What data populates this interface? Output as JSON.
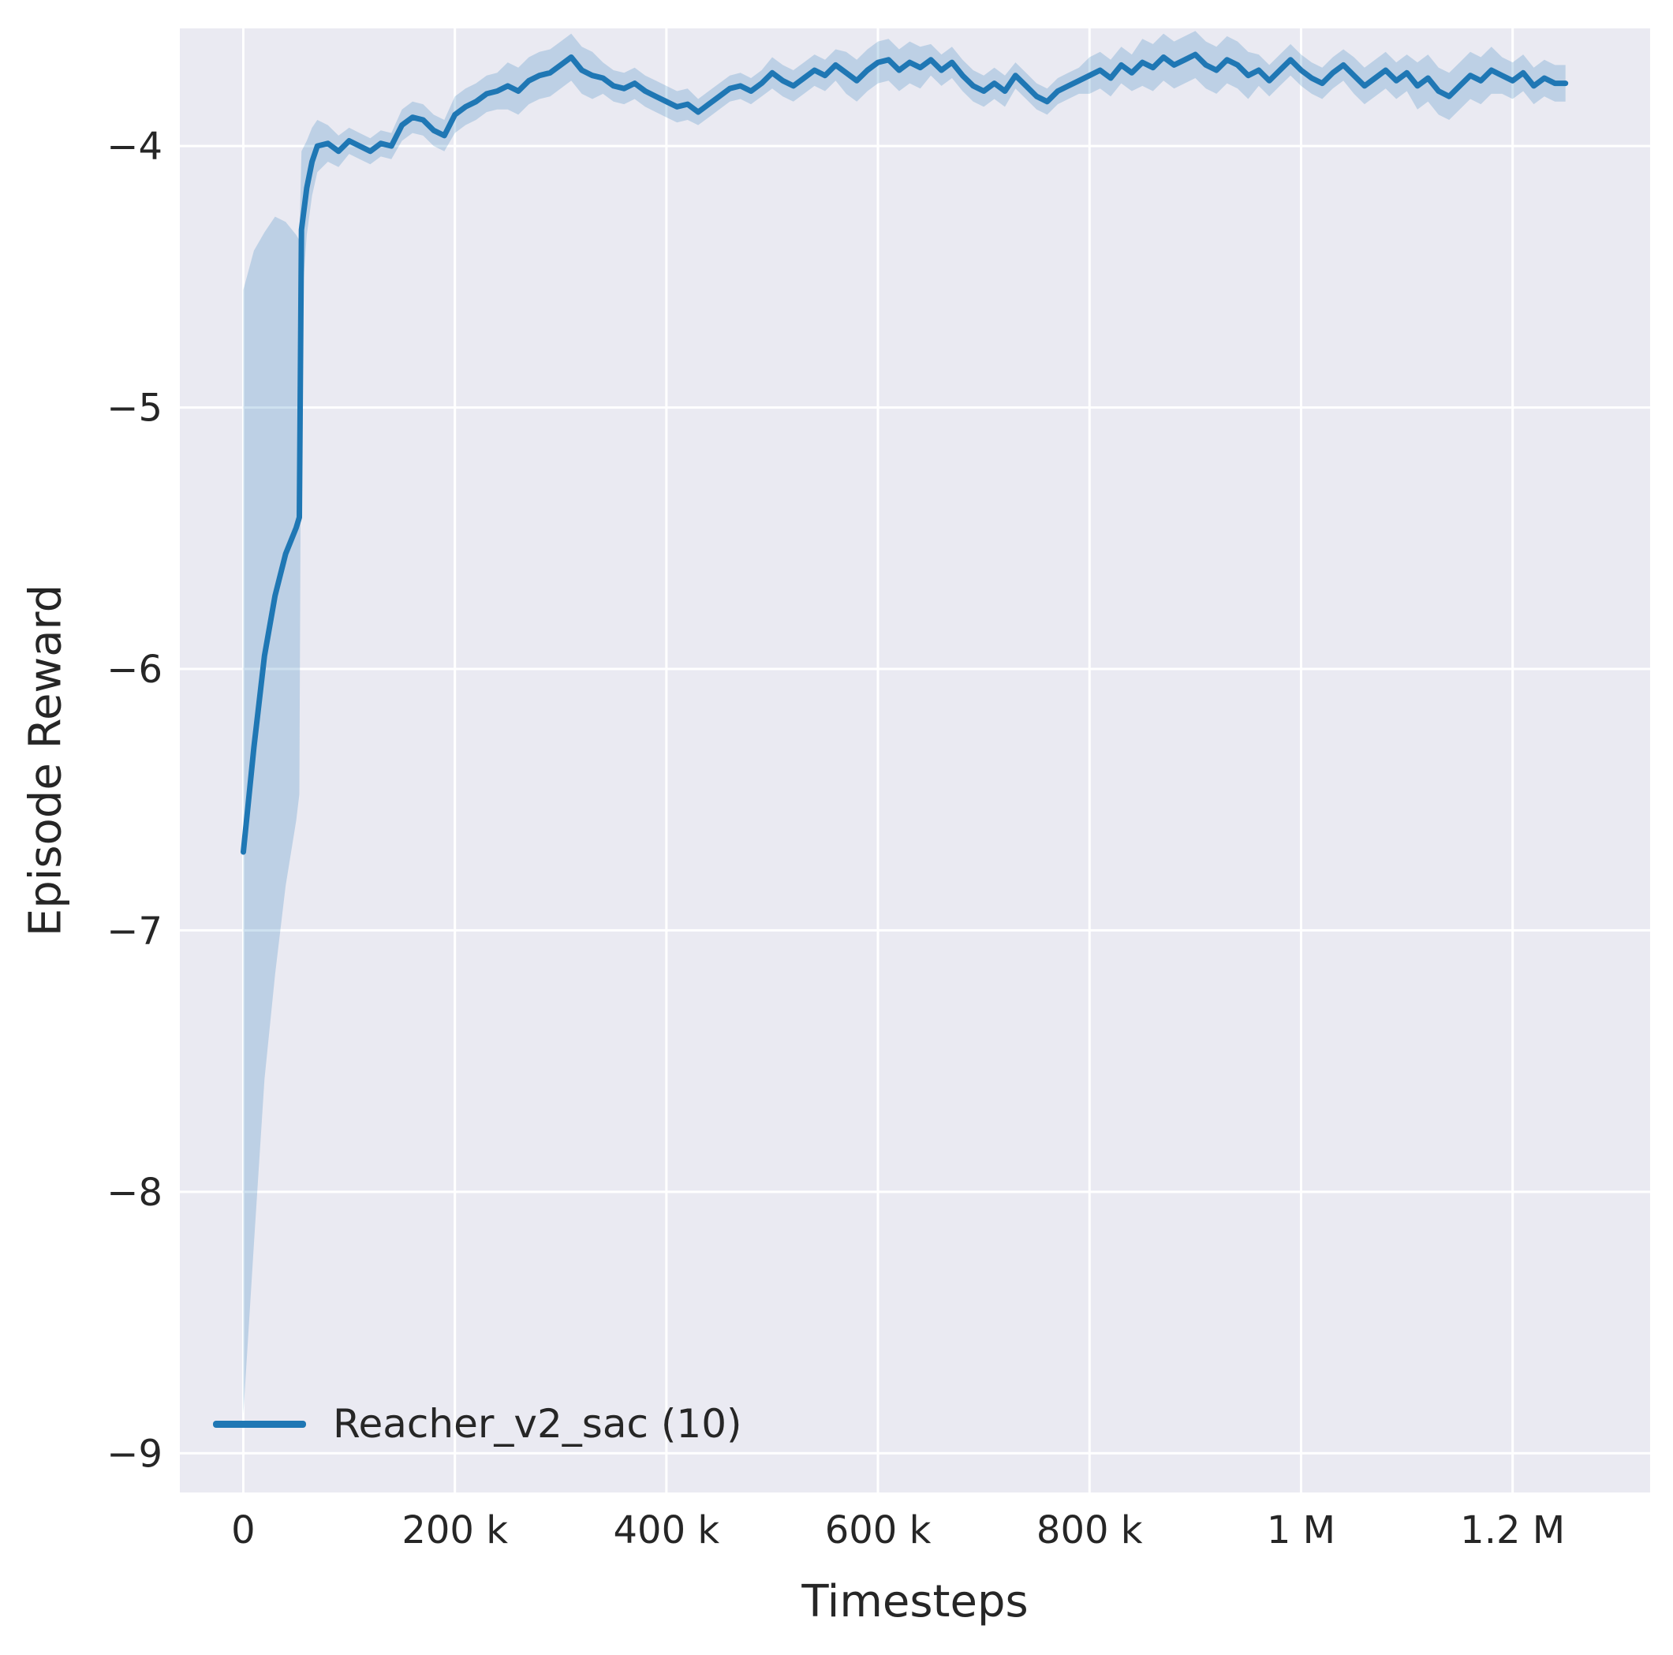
{
  "colors": {
    "figure_background": "#ffffff",
    "plot_background": "#eaeaf2",
    "grid": "#ffffff",
    "text": "#262626",
    "series": "#1f77b4",
    "band_alpha": 0.22
  },
  "chart_data": {
    "type": "line",
    "title": "",
    "xlabel": "Timesteps",
    "ylabel": "Episode Reward",
    "grid": true,
    "xlim": [
      -60000,
      1330000
    ],
    "ylim": [
      -9.15,
      -3.55
    ],
    "x_ticks": [
      {
        "value": 0,
        "label": "0"
      },
      {
        "value": 200000,
        "label": "200 k"
      },
      {
        "value": 400000,
        "label": "400 k"
      },
      {
        "value": 600000,
        "label": "600 k"
      },
      {
        "value": 800000,
        "label": "800 k"
      },
      {
        "value": 1000000,
        "label": "1 M"
      },
      {
        "value": 1200000,
        "label": "1.2 M"
      }
    ],
    "y_ticks": [
      {
        "value": -4,
        "label": "−4"
      },
      {
        "value": -5,
        "label": "−5"
      },
      {
        "value": -6,
        "label": "−6"
      },
      {
        "value": -7,
        "label": "−7"
      },
      {
        "value": -8,
        "label": "−8"
      },
      {
        "value": -9,
        "label": "−9"
      }
    ],
    "legend": {
      "position": "lower left",
      "entries": [
        {
          "label": "Reacher_v2_sac (10)",
          "color": "#1f77b4"
        }
      ]
    },
    "series": [
      {
        "name": "Reacher_v2_sac (10)",
        "color": "#1f77b4",
        "x": [
          0,
          10000,
          20000,
          30000,
          40000,
          50000,
          53000,
          55000,
          60000,
          65000,
          70000,
          80000,
          90000,
          100000,
          110000,
          120000,
          130000,
          140000,
          150000,
          160000,
          170000,
          180000,
          190000,
          200000,
          210000,
          220000,
          230000,
          240000,
          250000,
          260000,
          270000,
          280000,
          290000,
          300000,
          310000,
          320000,
          330000,
          340000,
          350000,
          360000,
          370000,
          380000,
          390000,
          400000,
          410000,
          420000,
          430000,
          440000,
          450000,
          460000,
          470000,
          480000,
          490000,
          500000,
          510000,
          520000,
          530000,
          540000,
          550000,
          560000,
          570000,
          580000,
          590000,
          600000,
          610000,
          620000,
          630000,
          640000,
          650000,
          660000,
          670000,
          680000,
          690000,
          700000,
          710000,
          720000,
          730000,
          740000,
          750000,
          760000,
          770000,
          780000,
          790000,
          800000,
          810000,
          820000,
          830000,
          840000,
          850000,
          860000,
          870000,
          880000,
          890000,
          900000,
          910000,
          920000,
          930000,
          940000,
          950000,
          960000,
          970000,
          980000,
          990000,
          1000000,
          1010000,
          1020000,
          1030000,
          1040000,
          1050000,
          1060000,
          1070000,
          1080000,
          1090000,
          1100000,
          1110000,
          1120000,
          1130000,
          1140000,
          1150000,
          1160000,
          1170000,
          1180000,
          1190000,
          1200000,
          1210000,
          1220000,
          1230000,
          1240000,
          1250000
        ],
        "mean": [
          -6.7,
          -6.3,
          -5.95,
          -5.72,
          -5.56,
          -5.46,
          -5.42,
          -4.32,
          -4.16,
          -4.06,
          -4.0,
          -3.99,
          -4.02,
          -3.98,
          -4.0,
          -4.02,
          -3.99,
          -4.0,
          -3.92,
          -3.89,
          -3.9,
          -3.94,
          -3.96,
          -3.88,
          -3.85,
          -3.83,
          -3.8,
          -3.79,
          -3.77,
          -3.79,
          -3.75,
          -3.73,
          -3.72,
          -3.69,
          -3.66,
          -3.71,
          -3.73,
          -3.74,
          -3.77,
          -3.78,
          -3.76,
          -3.79,
          -3.81,
          -3.83,
          -3.85,
          -3.84,
          -3.87,
          -3.84,
          -3.81,
          -3.78,
          -3.77,
          -3.79,
          -3.76,
          -3.72,
          -3.75,
          -3.77,
          -3.74,
          -3.71,
          -3.73,
          -3.69,
          -3.72,
          -3.75,
          -3.71,
          -3.68,
          -3.67,
          -3.71,
          -3.68,
          -3.7,
          -3.67,
          -3.71,
          -3.68,
          -3.73,
          -3.77,
          -3.79,
          -3.76,
          -3.79,
          -3.73,
          -3.77,
          -3.81,
          -3.83,
          -3.79,
          -3.77,
          -3.75,
          -3.73,
          -3.71,
          -3.74,
          -3.69,
          -3.72,
          -3.68,
          -3.7,
          -3.66,
          -3.69,
          -3.67,
          -3.65,
          -3.69,
          -3.71,
          -3.67,
          -3.69,
          -3.73,
          -3.71,
          -3.75,
          -3.71,
          -3.67,
          -3.71,
          -3.74,
          -3.76,
          -3.72,
          -3.69,
          -3.73,
          -3.77,
          -3.74,
          -3.71,
          -3.75,
          -3.72,
          -3.77,
          -3.74,
          -3.79,
          -3.81,
          -3.77,
          -3.73,
          -3.75,
          -3.71,
          -3.73,
          -3.75,
          -3.72,
          -3.77,
          -3.74,
          -3.76,
          -3.76
        ],
        "spread": [
          2.15,
          1.9,
          1.62,
          1.45,
          1.27,
          1.12,
          1.06,
          0.3,
          0.18,
          0.13,
          0.1,
          0.07,
          0.06,
          0.05,
          0.05,
          0.05,
          0.05,
          0.05,
          0.06,
          0.06,
          0.06,
          0.06,
          0.06,
          0.07,
          0.07,
          0.07,
          0.07,
          0.07,
          0.09,
          0.09,
          0.09,
          0.09,
          0.09,
          0.09,
          0.09,
          0.09,
          0.09,
          0.06,
          0.06,
          0.06,
          0.06,
          0.06,
          0.06,
          0.06,
          0.06,
          0.06,
          0.05,
          0.05,
          0.05,
          0.05,
          0.05,
          0.05,
          0.05,
          0.06,
          0.06,
          0.06,
          0.06,
          0.06,
          0.06,
          0.06,
          0.08,
          0.08,
          0.08,
          0.08,
          0.08,
          0.08,
          0.08,
          0.08,
          0.06,
          0.06,
          0.06,
          0.06,
          0.06,
          0.06,
          0.06,
          0.06,
          0.05,
          0.05,
          0.05,
          0.05,
          0.05,
          0.05,
          0.05,
          0.07,
          0.07,
          0.07,
          0.07,
          0.07,
          0.09,
          0.09,
          0.09,
          0.09,
          0.09,
          0.09,
          0.09,
          0.09,
          0.09,
          0.09,
          0.09,
          0.06,
          0.06,
          0.06,
          0.06,
          0.06,
          0.06,
          0.06,
          0.06,
          0.06,
          0.07,
          0.07,
          0.07,
          0.07,
          0.07,
          0.07,
          0.09,
          0.09,
          0.09,
          0.09,
          0.09,
          0.09,
          0.09,
          0.09,
          0.07,
          0.07,
          0.07,
          0.07,
          0.07,
          0.07,
          0.07
        ]
      }
    ]
  }
}
